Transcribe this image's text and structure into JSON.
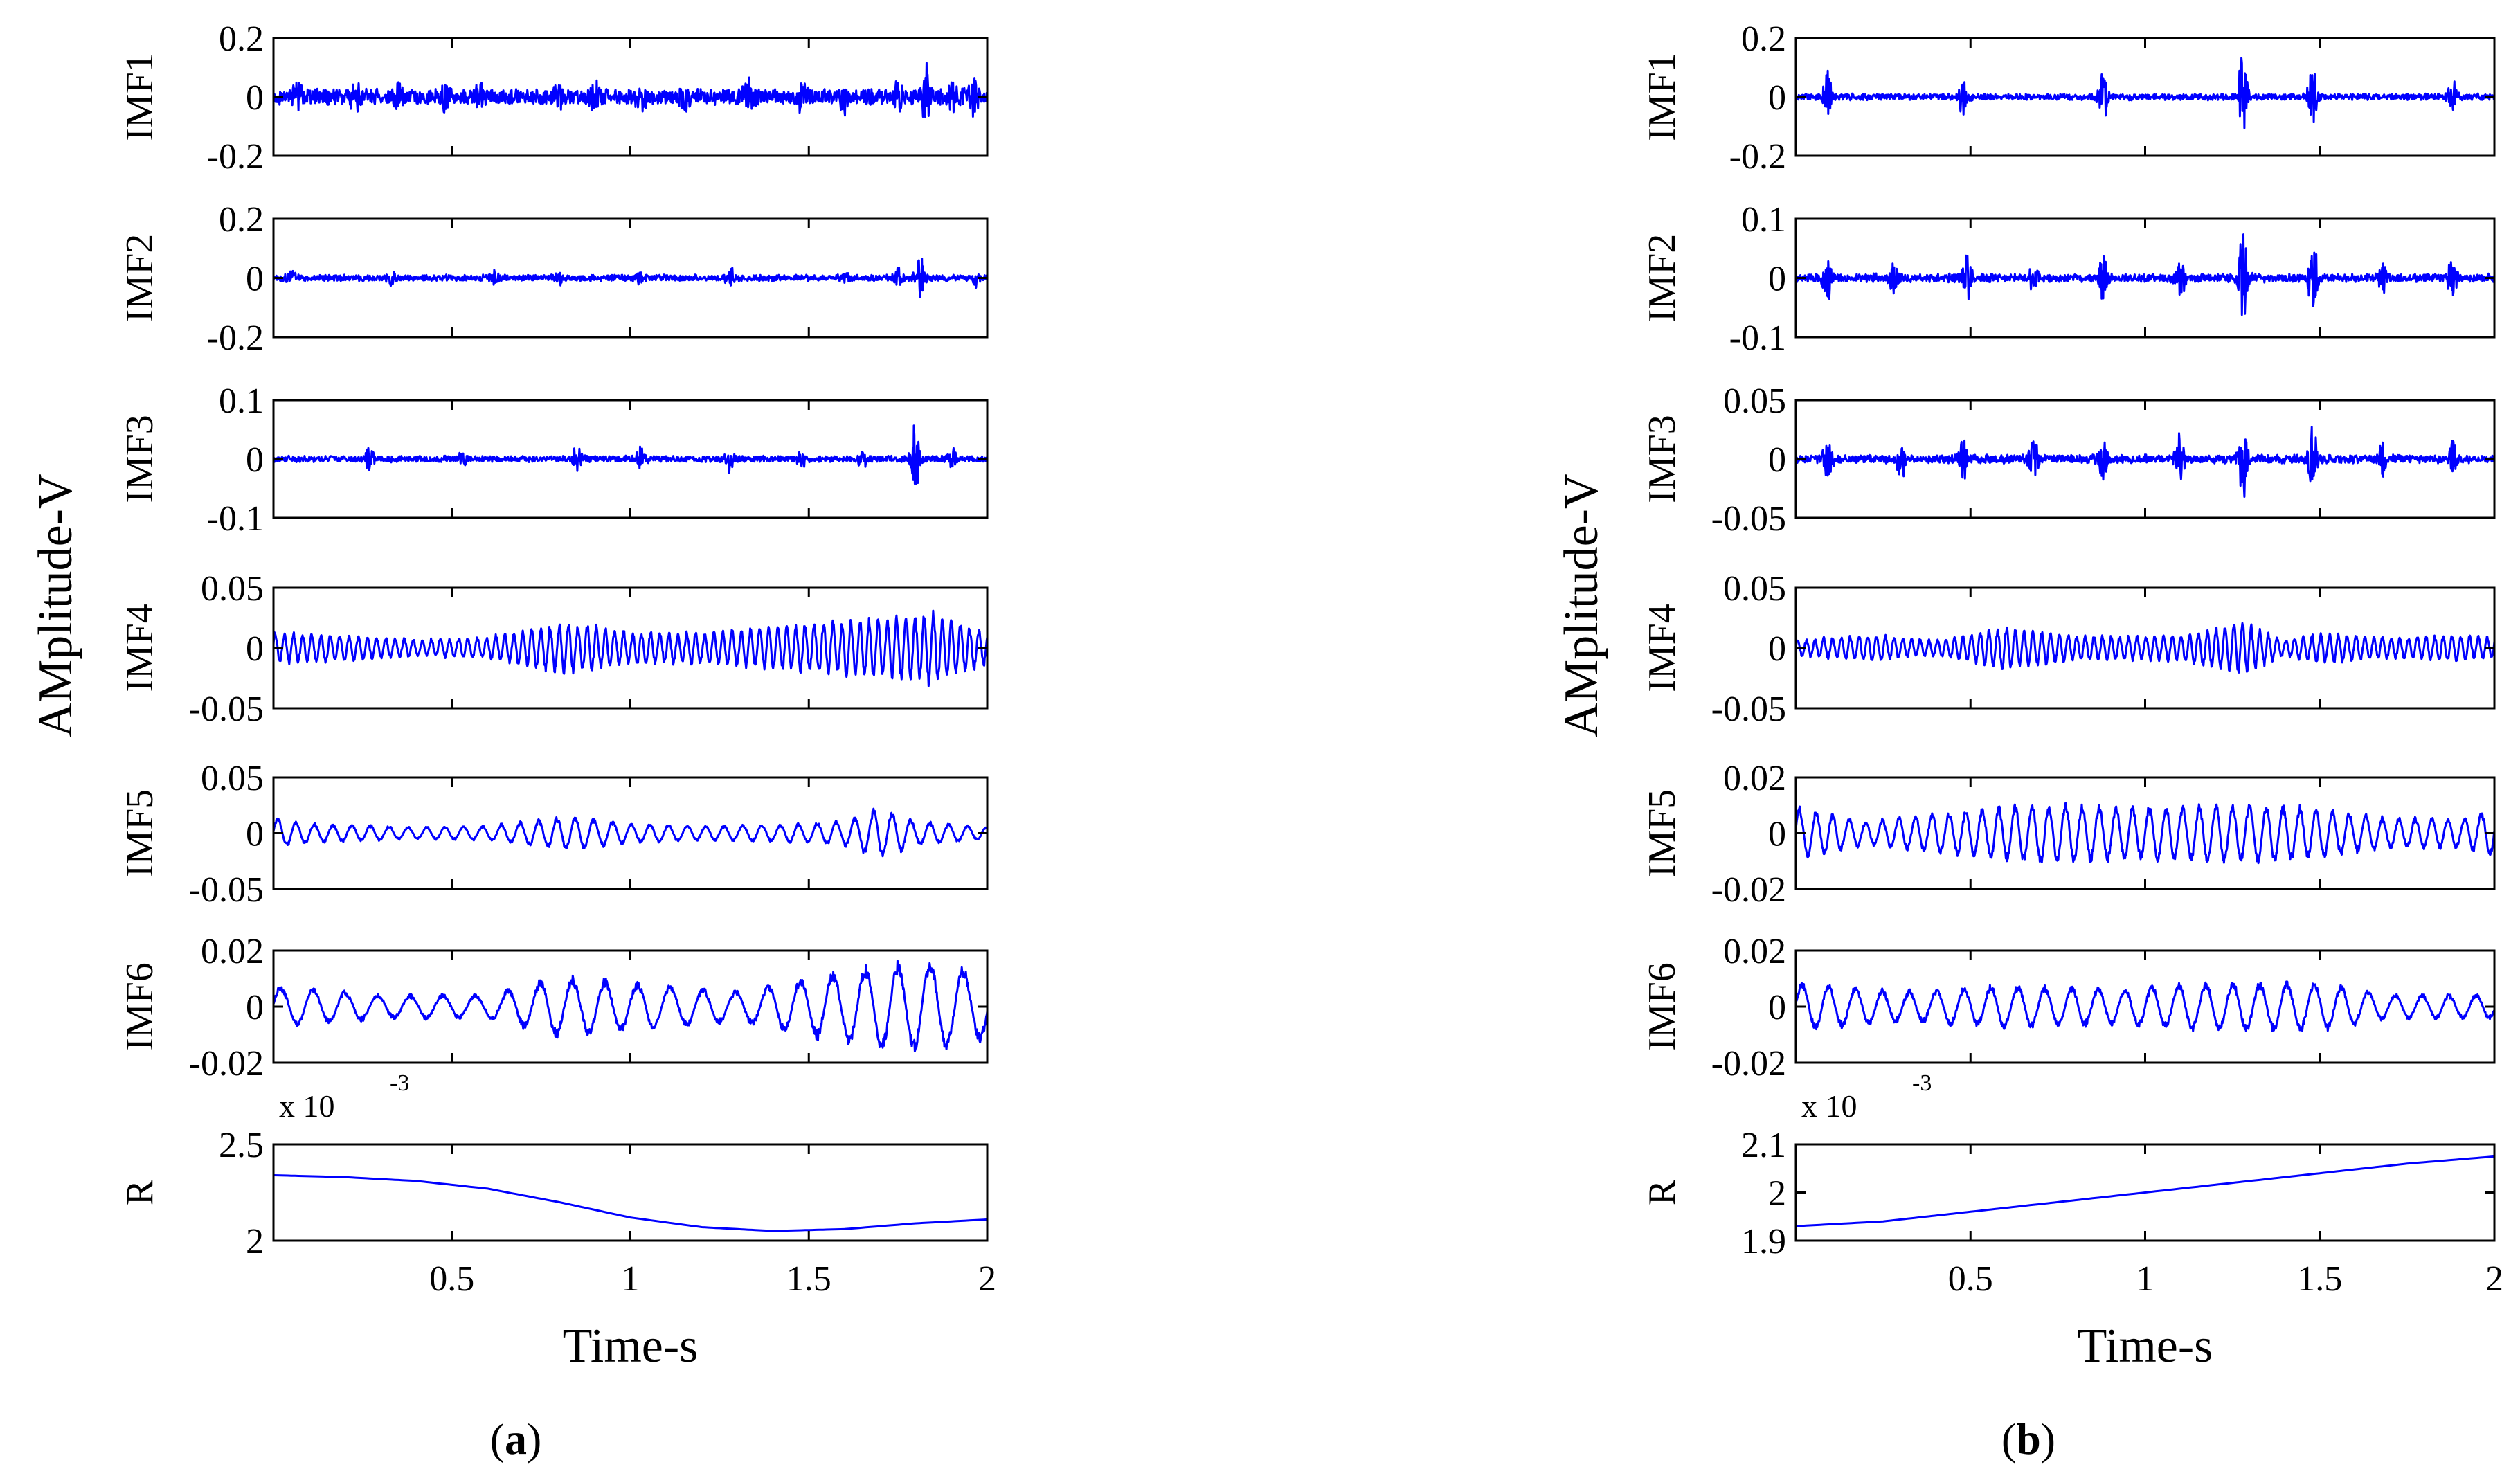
{
  "figure": {
    "captions": [
      "(a)",
      "(b)"
    ],
    "caption_letters": [
      "a",
      "b"
    ],
    "line_color": "#0000ff"
  },
  "chart_data": [
    {
      "id": "a",
      "type": "line",
      "ylabel": "AMplitude-V",
      "xlabel": "Time-s",
      "xlim": [
        0,
        2
      ],
      "xticks": [
        "0.5",
        "1",
        "1.5",
        "2"
      ],
      "subplots": [
        {
          "label": "IMF1",
          "ylim": [
            -0.2,
            0.2
          ],
          "yticks": [
            "0.2",
            "0",
            "-0.2"
          ],
          "signal": {
            "kind": "noise",
            "base": 0.03,
            "cap": 0.12,
            "bursts": [
              [
                0.07,
                0.05
              ],
              [
                0.23,
                0.04
              ],
              [
                0.35,
                0.04
              ],
              [
                0.48,
                0.04
              ],
              [
                0.58,
                0.04
              ],
              [
                0.8,
                0.04
              ],
              [
                0.9,
                0.05
              ],
              [
                1.03,
                0.04
              ],
              [
                1.15,
                0.05
              ],
              [
                1.33,
                0.05
              ],
              [
                1.48,
                0.04
              ],
              [
                1.6,
                0.04
              ],
              [
                1.75,
                0.05
              ],
              [
                1.83,
                0.1
              ],
              [
                1.9,
                0.06
              ],
              [
                1.96,
                0.05
              ]
            ]
          }
        },
        {
          "label": "IMF2",
          "ylim": [
            -0.2,
            0.2
          ],
          "yticks": [
            "0.2",
            "0",
            "-0.2"
          ],
          "signal": {
            "kind": "noise",
            "base": 0.012,
            "cap": 0.1,
            "bursts": [
              [
                0.05,
                0.02
              ],
              [
                0.33,
                0.02
              ],
              [
                0.62,
                0.02
              ],
              [
                0.8,
                0.02
              ],
              [
                1.02,
                0.02
              ],
              [
                1.28,
                0.03
              ],
              [
                1.6,
                0.02
              ],
              [
                1.75,
                0.03
              ],
              [
                1.81,
                0.09
              ],
              [
                1.97,
                0.03
              ]
            ]
          }
        },
        {
          "label": "IMF3",
          "ylim": [
            -0.1,
            0.1
          ],
          "yticks": [
            "0.1",
            "0",
            "-0.1"
          ],
          "signal": {
            "kind": "noise",
            "base": 0.006,
            "cap": 0.07,
            "bursts": [
              [
                0.27,
                0.02
              ],
              [
                0.53,
                0.01
              ],
              [
                0.85,
                0.025
              ],
              [
                1.03,
                0.02
              ],
              [
                1.28,
                0.02
              ],
              [
                1.48,
                0.015
              ],
              [
                1.65,
                0.015
              ],
              [
                1.8,
                0.07
              ],
              [
                1.9,
                0.02
              ]
            ]
          }
        },
        {
          "label": "IMF4",
          "ylim": [
            -0.05,
            0.05
          ],
          "yticks": [
            "0.05",
            "0",
            "-0.05"
          ],
          "signal": {
            "kind": "osc",
            "cycles": 78,
            "base": 0.004,
            "env": [
              [
                0.0,
                0.012
              ],
              [
                0.2,
                0.01
              ],
              [
                0.4,
                0.006
              ],
              [
                0.6,
                0.008
              ],
              [
                0.82,
                0.02
              ],
              [
                1.0,
                0.012
              ],
              [
                1.2,
                0.012
              ],
              [
                1.4,
                0.016
              ],
              [
                1.55,
                0.02
              ],
              [
                1.7,
                0.022
              ],
              [
                1.85,
                0.028
              ],
              [
                2.0,
                0.012
              ]
            ]
          }
        },
        {
          "label": "IMF5",
          "ylim": [
            -0.05,
            0.05
          ],
          "yticks": [
            "0.05",
            "0",
            "-0.05"
          ],
          "signal": {
            "kind": "osc",
            "cycles": 38,
            "base": 0.001,
            "env": [
              [
                0.0,
                0.013
              ],
              [
                0.1,
                0.008
              ],
              [
                0.4,
                0.005
              ],
              [
                0.6,
                0.006
              ],
              [
                0.83,
                0.014
              ],
              [
                1.0,
                0.008
              ],
              [
                1.2,
                0.006
              ],
              [
                1.4,
                0.007
              ],
              [
                1.6,
                0.01
              ],
              [
                1.7,
                0.022
              ],
              [
                1.8,
                0.01
              ],
              [
                2.0,
                0.005
              ]
            ]
          }
        },
        {
          "label": "IMF6",
          "ylim": [
            -0.02,
            0.02
          ],
          "yticks": [
            "0.02",
            "0",
            "-0.02"
          ],
          "signal": {
            "kind": "osc",
            "cycles": 22,
            "base": 0.001,
            "env": [
              [
                0.0,
                0.007
              ],
              [
                0.3,
                0.004
              ],
              [
                0.6,
                0.004
              ],
              [
                0.8,
                0.01
              ],
              [
                1.0,
                0.008
              ],
              [
                1.3,
                0.005
              ],
              [
                1.5,
                0.01
              ],
              [
                1.7,
                0.014
              ],
              [
                1.85,
                0.015
              ],
              [
                2.0,
                0.011
              ]
            ]
          }
        },
        {
          "label": "R",
          "ylim": [
            2.0,
            2.5
          ],
          "yticks": [
            "2.5",
            "2"
          ],
          "exponent_label": "x 10",
          "exponent_power": "-3",
          "signal": {
            "kind": "curve",
            "points": [
              [
                0.0,
                2.34
              ],
              [
                0.2,
                2.33
              ],
              [
                0.4,
                2.31
              ],
              [
                0.6,
                2.27
              ],
              [
                0.8,
                2.2
              ],
              [
                1.0,
                2.12
              ],
              [
                1.2,
                2.07
              ],
              [
                1.4,
                2.05
              ],
              [
                1.6,
                2.06
              ],
              [
                1.8,
                2.09
              ],
              [
                2.0,
                2.11
              ]
            ]
          }
        }
      ]
    },
    {
      "id": "b",
      "type": "line",
      "ylabel": "AMplitude-V",
      "xlabel": "Time-s",
      "xlim": [
        0,
        2
      ],
      "xticks": [
        "0.5",
        "1",
        "1.5",
        "2"
      ],
      "subplots": [
        {
          "label": "IMF1",
          "ylim": [
            -0.2,
            0.2
          ],
          "yticks": [
            "0.2",
            "0",
            "-0.2"
          ],
          "signal": {
            "kind": "noise",
            "base": 0.012,
            "cap": 0.18,
            "bursts": [
              [
                0.09,
                0.1
              ],
              [
                0.48,
                0.08
              ],
              [
                0.88,
                0.09
              ],
              [
                1.28,
                0.17
              ],
              [
                1.48,
                0.12
              ],
              [
                1.88,
                0.07
              ]
            ]
          }
        },
        {
          "label": "IMF2",
          "ylim": [
            -0.1,
            0.1
          ],
          "yticks": [
            "0.1",
            "0",
            "-0.1"
          ],
          "signal": {
            "kind": "noise",
            "base": 0.008,
            "cap": 0.09,
            "bursts": [
              [
                0.09,
                0.04
              ],
              [
                0.28,
                0.03
              ],
              [
                0.49,
                0.04
              ],
              [
                0.68,
                0.03
              ],
              [
                0.88,
                0.04
              ],
              [
                1.1,
                0.04
              ],
              [
                1.28,
                0.085
              ],
              [
                1.48,
                0.07
              ],
              [
                1.68,
                0.03
              ],
              [
                1.88,
                0.04
              ]
            ]
          }
        },
        {
          "label": "IMF3",
          "ylim": [
            -0.05,
            0.05
          ],
          "yticks": [
            "0.05",
            "0",
            "-0.05"
          ],
          "signal": {
            "kind": "noise",
            "base": 0.004,
            "cap": 0.04,
            "bursts": [
              [
                0.09,
                0.025
              ],
              [
                0.3,
                0.02
              ],
              [
                0.48,
                0.02
              ],
              [
                0.68,
                0.02
              ],
              [
                0.88,
                0.02
              ],
              [
                1.1,
                0.02
              ],
              [
                1.28,
                0.035
              ],
              [
                1.48,
                0.035
              ],
              [
                1.68,
                0.015
              ],
              [
                1.88,
                0.015
              ]
            ]
          }
        },
        {
          "label": "IMF4",
          "ylim": [
            -0.05,
            0.05
          ],
          "yticks": [
            "0.05",
            "0",
            "-0.05"
          ],
          "signal": {
            "kind": "osc",
            "cycles": 80,
            "base": 0.003,
            "env": [
              [
                0.0,
                0.006
              ],
              [
                0.2,
                0.01
              ],
              [
                0.4,
                0.006
              ],
              [
                0.6,
                0.016
              ],
              [
                0.8,
                0.01
              ],
              [
                1.0,
                0.009
              ],
              [
                1.1,
                0.01
              ],
              [
                1.28,
                0.02
              ],
              [
                1.4,
                0.006
              ],
              [
                1.5,
                0.012
              ],
              [
                1.7,
                0.008
              ],
              [
                1.9,
                0.01
              ],
              [
                2.0,
                0.008
              ]
            ]
          }
        },
        {
          "label": "IMF5",
          "ylim": [
            -0.02,
            0.02
          ],
          "yticks": [
            "0.02",
            "0",
            "-0.02"
          ],
          "signal": {
            "kind": "osc",
            "cycles": 42,
            "base": 0.001,
            "env": [
              [
                0.0,
                0.009
              ],
              [
                0.2,
                0.004
              ],
              [
                0.45,
                0.007
              ],
              [
                0.7,
                0.01
              ],
              [
                0.9,
                0.009
              ],
              [
                1.1,
                0.009
              ],
              [
                1.3,
                0.01
              ],
              [
                1.5,
                0.008
              ],
              [
                1.7,
                0.005
              ],
              [
                1.9,
                0.005
              ],
              [
                2.0,
                0.008
              ]
            ]
          }
        },
        {
          "label": "IMF6",
          "ylim": [
            -0.02,
            0.02
          ],
          "yticks": [
            "0.02",
            "0",
            "-0.02"
          ],
          "signal": {
            "kind": "osc",
            "cycles": 26,
            "base": 0.001,
            "env": [
              [
                0.0,
                0.008
              ],
              [
                0.3,
                0.005
              ],
              [
                0.6,
                0.007
              ],
              [
                0.9,
                0.006
              ],
              [
                1.2,
                0.008
              ],
              [
                1.5,
                0.008
              ],
              [
                1.7,
                0.004
              ],
              [
                2.0,
                0.004
              ]
            ]
          }
        },
        {
          "label": "R",
          "ylim": [
            1.9,
            2.1
          ],
          "yticks": [
            "2.1",
            "2",
            "1.9"
          ],
          "exponent_label": "x 10",
          "exponent_power": "-3",
          "signal": {
            "kind": "curve",
            "points": [
              [
                0.0,
                1.93
              ],
              [
                0.25,
                1.94
              ],
              [
                0.5,
                1.96
              ],
              [
                0.75,
                1.98
              ],
              [
                1.0,
                2.0
              ],
              [
                1.25,
                2.02
              ],
              [
                1.5,
                2.04
              ],
              [
                1.75,
                2.06
              ],
              [
                2.0,
                2.075
              ]
            ]
          }
        }
      ]
    }
  ]
}
